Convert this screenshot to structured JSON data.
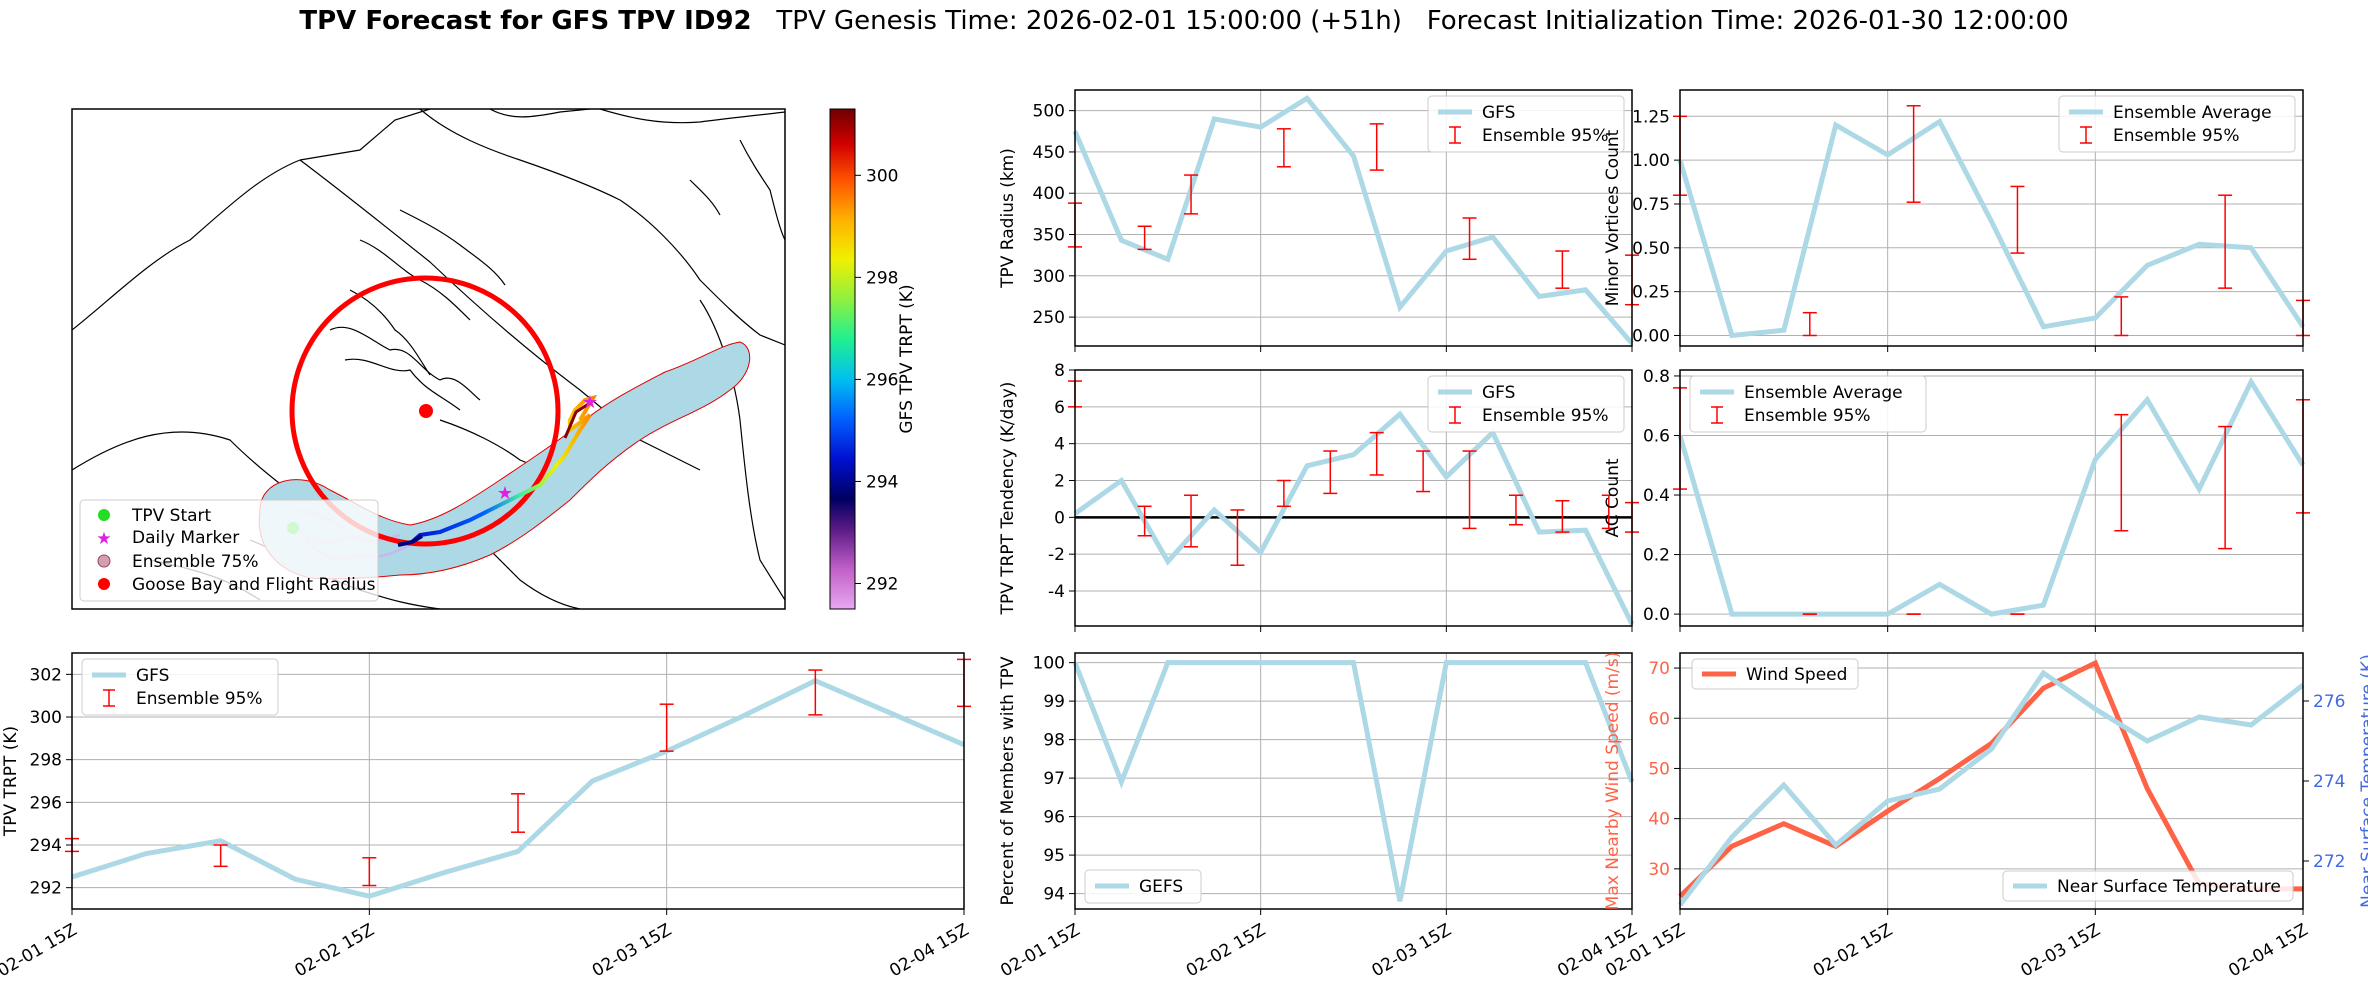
{
  "title": {
    "main": "TPV Forecast for GFS TPV ID92",
    "genesis": "TPV Genesis Time: 2026-02-01 15:00:00 (+51h)",
    "init": "Forecast Initialization Time: 2026-01-30 12:00:00"
  },
  "colors": {
    "line": "#add8e6",
    "error": "#ff0000",
    "wind": "#ff6347",
    "temp_axis": "#4169e1"
  },
  "map": {
    "legend": [
      "TPV Start",
      "Daily Marker",
      "Ensemble 75%",
      "Goose Bay and Flight Radius"
    ],
    "colorbar": {
      "label": "GFS TPV TRPT (K)",
      "ticks": [
        292,
        294,
        296,
        298,
        300
      ],
      "range": [
        291.5,
        301.3
      ]
    }
  },
  "chart_data": [
    {
      "id": "radius",
      "type": "line",
      "ylabel": "TPV Radius (km)",
      "ylim": [
        215,
        525
      ],
      "yticks": [
        250,
        300,
        350,
        400,
        450,
        500
      ],
      "legend": [
        "GFS",
        "Ensemble 95%"
      ],
      "legend_pos": "top-right",
      "series": [
        {
          "name": "GFS",
          "values": [
            475,
            343,
            320,
            490,
            480,
            515,
            445,
            262,
            330,
            347,
            275,
            283,
            218
          ]
        }
      ],
      "errorbars": [
        {
          "x": 0,
          "low": 335,
          "high": 388
        },
        {
          "x": 1.5,
          "low": 332,
          "high": 360
        },
        {
          "x": 2.5,
          "low": 375,
          "high": 422
        },
        {
          "x": 4.5,
          "low": 432,
          "high": 478
        },
        {
          "x": 6.5,
          "low": 428,
          "high": 484
        },
        {
          "x": 8.5,
          "low": 320,
          "high": 370
        },
        {
          "x": 10.5,
          "low": 285,
          "high": 330
        },
        {
          "x": 12,
          "low": 265,
          "high": 325
        }
      ]
    },
    {
      "id": "minor",
      "type": "line",
      "ylabel": "Minor Vortices Count",
      "ylim": [
        -0.06,
        1.4
      ],
      "yticks": [
        0.0,
        0.25,
        0.5,
        0.75,
        1.0,
        1.25
      ],
      "yticklabels": [
        "0.00",
        "0.25",
        "0.50",
        "0.75",
        "1.00",
        "1.25"
      ],
      "legend": [
        "Ensemble Average",
        "Ensemble 95%"
      ],
      "legend_pos": "top-right",
      "series": [
        {
          "name": "Ensemble Average",
          "values": [
            1.0,
            0.0,
            0.03,
            1.2,
            1.03,
            1.22,
            0.65,
            0.05,
            0.1,
            0.4,
            0.52,
            0.5,
            0.05
          ]
        }
      ],
      "errorbars": [
        {
          "x": 0,
          "low": 0.8,
          "high": 1.25
        },
        {
          "x": 2.5,
          "low": 0.0,
          "high": 0.13
        },
        {
          "x": 4.5,
          "low": 0.76,
          "high": 1.31
        },
        {
          "x": 6.5,
          "low": 0.47,
          "high": 0.85
        },
        {
          "x": 8.5,
          "low": 0.0,
          "high": 0.22
        },
        {
          "x": 10.5,
          "low": 0.27,
          "high": 0.8
        },
        {
          "x": 12,
          "low": 0.0,
          "high": 0.2
        }
      ]
    },
    {
      "id": "tendency",
      "type": "line",
      "ylabel": "TPV TRPT Tendency (K/day)",
      "ylim": [
        -5.9,
        8.0
      ],
      "yticks": [
        -4,
        -2,
        0,
        2,
        4,
        6,
        8
      ],
      "legend": [
        "GFS",
        "Ensemble 95%"
      ],
      "legend_pos": "top-right",
      "zero_line": true,
      "series": [
        {
          "name": "GFS",
          "values": [
            0.2,
            2.0,
            -2.4,
            0.4,
            -1.9,
            2.8,
            3.4,
            5.6,
            2.2,
            4.6,
            -0.8,
            -0.7,
            -5.8
          ]
        }
      ],
      "errorbars": [
        {
          "x": 0,
          "low": 6.0,
          "high": 7.4
        },
        {
          "x": 1.5,
          "low": -1.0,
          "high": 0.6
        },
        {
          "x": 2.5,
          "low": -1.6,
          "high": 1.2
        },
        {
          "x": 3.5,
          "low": -2.6,
          "high": 0.4
        },
        {
          "x": 4.5,
          "low": 0.6,
          "high": 2.0
        },
        {
          "x": 5.5,
          "low": 1.3,
          "high": 3.6
        },
        {
          "x": 6.5,
          "low": 2.3,
          "high": 4.6
        },
        {
          "x": 7.5,
          "low": 1.4,
          "high": 3.6
        },
        {
          "x": 8.5,
          "low": -0.6,
          "high": 3.6
        },
        {
          "x": 9.5,
          "low": -0.4,
          "high": 1.2
        },
        {
          "x": 10.5,
          "low": -0.8,
          "high": 0.9
        },
        {
          "x": 11.5,
          "low": -0.6,
          "high": 1.2
        },
        {
          "x": 12,
          "low": -0.8,
          "high": 0.8
        }
      ]
    },
    {
      "id": "ac",
      "type": "line",
      "ylabel": "AC Count",
      "ylim": [
        -0.04,
        0.82
      ],
      "yticks": [
        0.0,
        0.2,
        0.4,
        0.6,
        0.8
      ],
      "yticklabels": [
        "0.0",
        "0.2",
        "0.4",
        "0.6",
        "0.8"
      ],
      "legend": [
        "Ensemble Average",
        "Ensemble 95%"
      ],
      "legend_pos": "top-left",
      "series": [
        {
          "name": "Ensemble Average",
          "values": [
            0.6,
            0.0,
            0.0,
            0.0,
            0.0,
            0.1,
            0.0,
            0.03,
            0.52,
            0.72,
            0.42,
            0.78,
            0.5
          ]
        }
      ],
      "errorbars": [
        {
          "x": 0,
          "low": 0.42,
          "high": 0.76
        },
        {
          "x": 2.5,
          "low": 0.0,
          "high": 0.0
        },
        {
          "x": 4.5,
          "low": 0.0,
          "high": 0.0
        },
        {
          "x": 6.5,
          "low": 0.0,
          "high": 0.0
        },
        {
          "x": 8.5,
          "low": 0.28,
          "high": 0.67
        },
        {
          "x": 10.5,
          "low": 0.22,
          "high": 0.63
        },
        {
          "x": 12,
          "low": 0.34,
          "high": 0.72
        }
      ]
    },
    {
      "id": "trpt",
      "type": "line",
      "ylabel": "TPV TRPT (K)",
      "ylim": [
        291.0,
        303.0
      ],
      "yticks": [
        292,
        294,
        296,
        298,
        300,
        302
      ],
      "legend": [
        "GFS",
        "Ensemble 95%"
      ],
      "legend_pos": "top-left",
      "series": [
        {
          "name": "GFS",
          "values": [
            292.5,
            293.6,
            294.2,
            292.4,
            291.6,
            292.7,
            293.7,
            297.0,
            298.4,
            300.0,
            301.7,
            300.2,
            298.7
          ]
        }
      ],
      "errorbars": [
        {
          "x": 0,
          "low": 293.7,
          "high": 294.3
        },
        {
          "x": 2,
          "low": 293.0,
          "high": 294.0
        },
        {
          "x": 4,
          "low": 292.1,
          "high": 293.4
        },
        {
          "x": 6,
          "low": 294.6,
          "high": 296.4
        },
        {
          "x": 8,
          "low": 298.4,
          "high": 300.6
        },
        {
          "x": 10,
          "low": 300.1,
          "high": 302.2
        },
        {
          "x": 12,
          "low": 300.5,
          "high": 302.7
        }
      ]
    },
    {
      "id": "percent",
      "type": "line",
      "ylabel": "Percent of Members with TPV",
      "ylim": [
        93.6,
        100.25
      ],
      "yticks": [
        94,
        95,
        96,
        97,
        98,
        99,
        100
      ],
      "legend": [
        "GEFS"
      ],
      "legend_pos": "bottom-left",
      "series": [
        {
          "name": "GEFS",
          "values": [
            100,
            96.9,
            100,
            100,
            100,
            100,
            100,
            93.8,
            100,
            100,
            100,
            100,
            96.9
          ]
        }
      ],
      "errorbars": []
    },
    {
      "id": "wind",
      "type": "line",
      "ylabel": "Max Nearby Wind Speed (m/s)",
      "ylim": [
        22,
        73
      ],
      "yticks": [
        30,
        40,
        50,
        60,
        70
      ],
      "ylabel2": "Near Surface Temperature (K)",
      "ylim2": [
        270.8,
        277.2
      ],
      "yticks2": [
        272,
        274,
        276
      ],
      "legend": [
        "Wind Speed",
        "Near Surface Temperature"
      ],
      "series": [
        {
          "name": "Wind Speed",
          "axis": "left",
          "values": [
            24.5,
            34.5,
            39,
            34.5,
            41.5,
            48,
            55,
            66,
            71,
            46,
            27,
            26,
            26
          ]
        },
        {
          "name": "Near Surface Temperature",
          "axis": "right",
          "values": [
            270.9,
            272.6,
            273.9,
            272.4,
            273.5,
            273.8,
            274.8,
            276.7,
            275.8,
            275.0,
            275.6,
            275.4,
            276.4
          ]
        }
      ]
    }
  ],
  "xaxis": {
    "n_points": 13,
    "ticks": [
      0,
      4,
      8,
      12
    ],
    "ticklabels": [
      "02-01 15Z",
      "02-02 15Z",
      "02-03 15Z",
      "02-04 15Z"
    ]
  }
}
